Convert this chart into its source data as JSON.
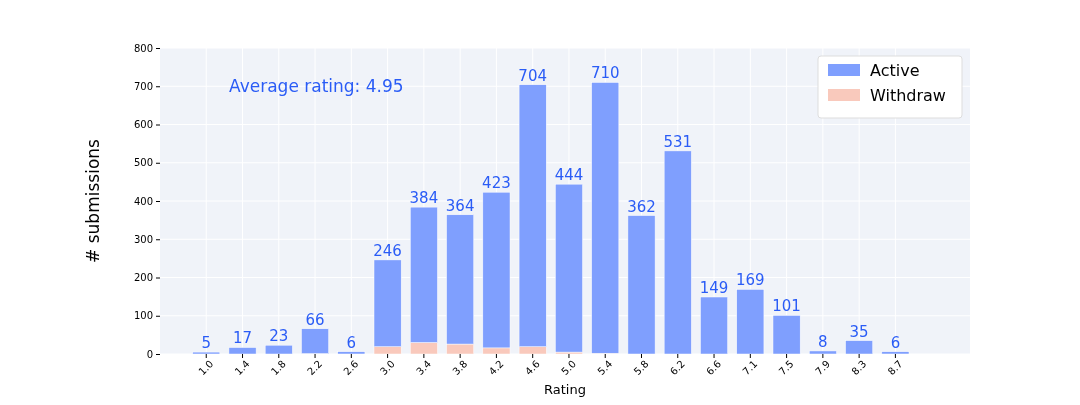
{
  "chart_data": {
    "type": "bar",
    "xlabel": "Rating",
    "ylabel": "# submissions",
    "categories": [
      "1.0",
      "1.4",
      "1.8",
      "2.2",
      "2.6",
      "3.0",
      "3.4",
      "3.8",
      "4.2",
      "4.6",
      "5.0",
      "5.4",
      "5.8",
      "6.2",
      "6.6",
      "7.1",
      "7.5",
      "7.9",
      "8.3",
      "8.7"
    ],
    "series": [
      {
        "name": "Withdraw",
        "color": "#f9c9bc",
        "values": [
          0,
          0,
          0,
          1,
          0,
          19,
          30,
          26,
          16,
          19,
          5,
          2,
          0,
          0,
          0,
          0,
          0,
          0,
          0,
          0
        ]
      },
      {
        "name": "Active",
        "color": "#7f9ffe",
        "values": [
          5,
          17,
          23,
          65,
          6,
          227,
          354,
          338,
          407,
          685,
          439,
          708,
          362,
          531,
          149,
          169,
          101,
          8,
          35,
          6
        ]
      }
    ],
    "stacked": true,
    "totals": [
      "5",
      "17",
      "23",
      "66",
      "6",
      "246",
      "384",
      "364",
      "423",
      "704",
      "444",
      "710",
      "362",
      "531",
      "149",
      "169",
      "101",
      "8",
      "35",
      "6"
    ],
    "ylim": [
      0,
      800
    ],
    "yticks": [
      0,
      100,
      200,
      300,
      400,
      500,
      600,
      700,
      800
    ],
    "grid": true,
    "legend": "top right",
    "annotations": [
      "Average rating: 4.95"
    ]
  }
}
